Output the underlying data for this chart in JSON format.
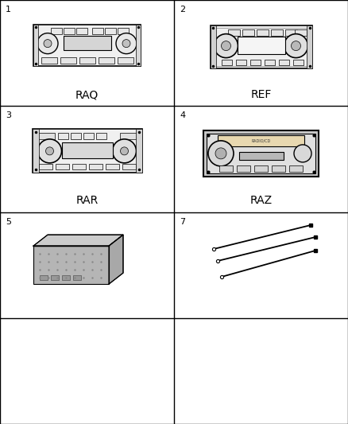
{
  "background": "#ffffff",
  "grid_color": "#000000",
  "cells": [
    {
      "num": "1",
      "label": "RAQ",
      "row": 0,
      "col": 0,
      "type": "radio_raq"
    },
    {
      "num": "2",
      "label": "REF",
      "row": 0,
      "col": 1,
      "type": "radio_ref"
    },
    {
      "num": "3",
      "label": "RAR",
      "row": 1,
      "col": 0,
      "type": "radio_rar"
    },
    {
      "num": "4",
      "label": "RAZ",
      "row": 1,
      "col": 1,
      "type": "radio_raz"
    },
    {
      "num": "5",
      "label": "",
      "row": 2,
      "col": 0,
      "type": "eq_box"
    },
    {
      "num": "7",
      "label": "",
      "row": 2,
      "col": 1,
      "type": "antennas"
    },
    {
      "num": "",
      "label": "",
      "row": 3,
      "col": 0,
      "type": "empty"
    },
    {
      "num": "",
      "label": "",
      "row": 3,
      "col": 1,
      "type": "empty"
    }
  ],
  "num_rows": 4,
  "num_cols": 2,
  "font_size_num": 8,
  "font_size_label": 10
}
